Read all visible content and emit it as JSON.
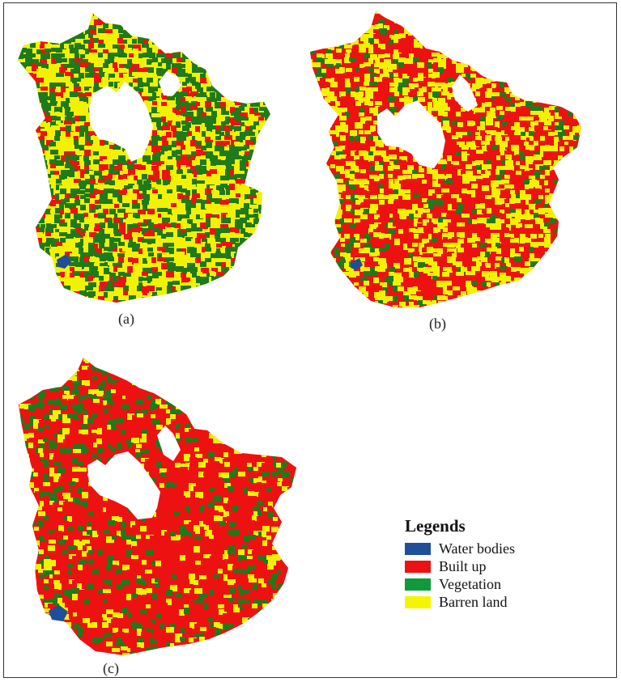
{
  "panels": [
    {
      "id": "a",
      "caption": "(a)",
      "mix": {
        "vegetation": 0.35,
        "barren": 0.5,
        "builtup": 0.15
      }
    },
    {
      "id": "b",
      "caption": "(b)",
      "mix": {
        "vegetation": 0.08,
        "barren": 0.37,
        "builtup": 0.55
      }
    },
    {
      "id": "c",
      "caption": "(c)",
      "mix": {
        "vegetation": 0.12,
        "barren": 0.13,
        "builtup": 0.75
      }
    }
  ],
  "legend": {
    "title": "Legends",
    "items": [
      {
        "label": "Water bodies",
        "color": "#1f4e9a"
      },
      {
        "label": "Built up",
        "color": "#ee1111"
      },
      {
        "label": "Vegetation",
        "color": "#0f9a3c"
      },
      {
        "label": "Barren land",
        "color": "#f5f500"
      }
    ]
  },
  "colors": {
    "water": "#1f4e9a",
    "builtup": "#ee1111",
    "vegetation": "#1e7a1a",
    "barren": "#f2f200"
  }
}
